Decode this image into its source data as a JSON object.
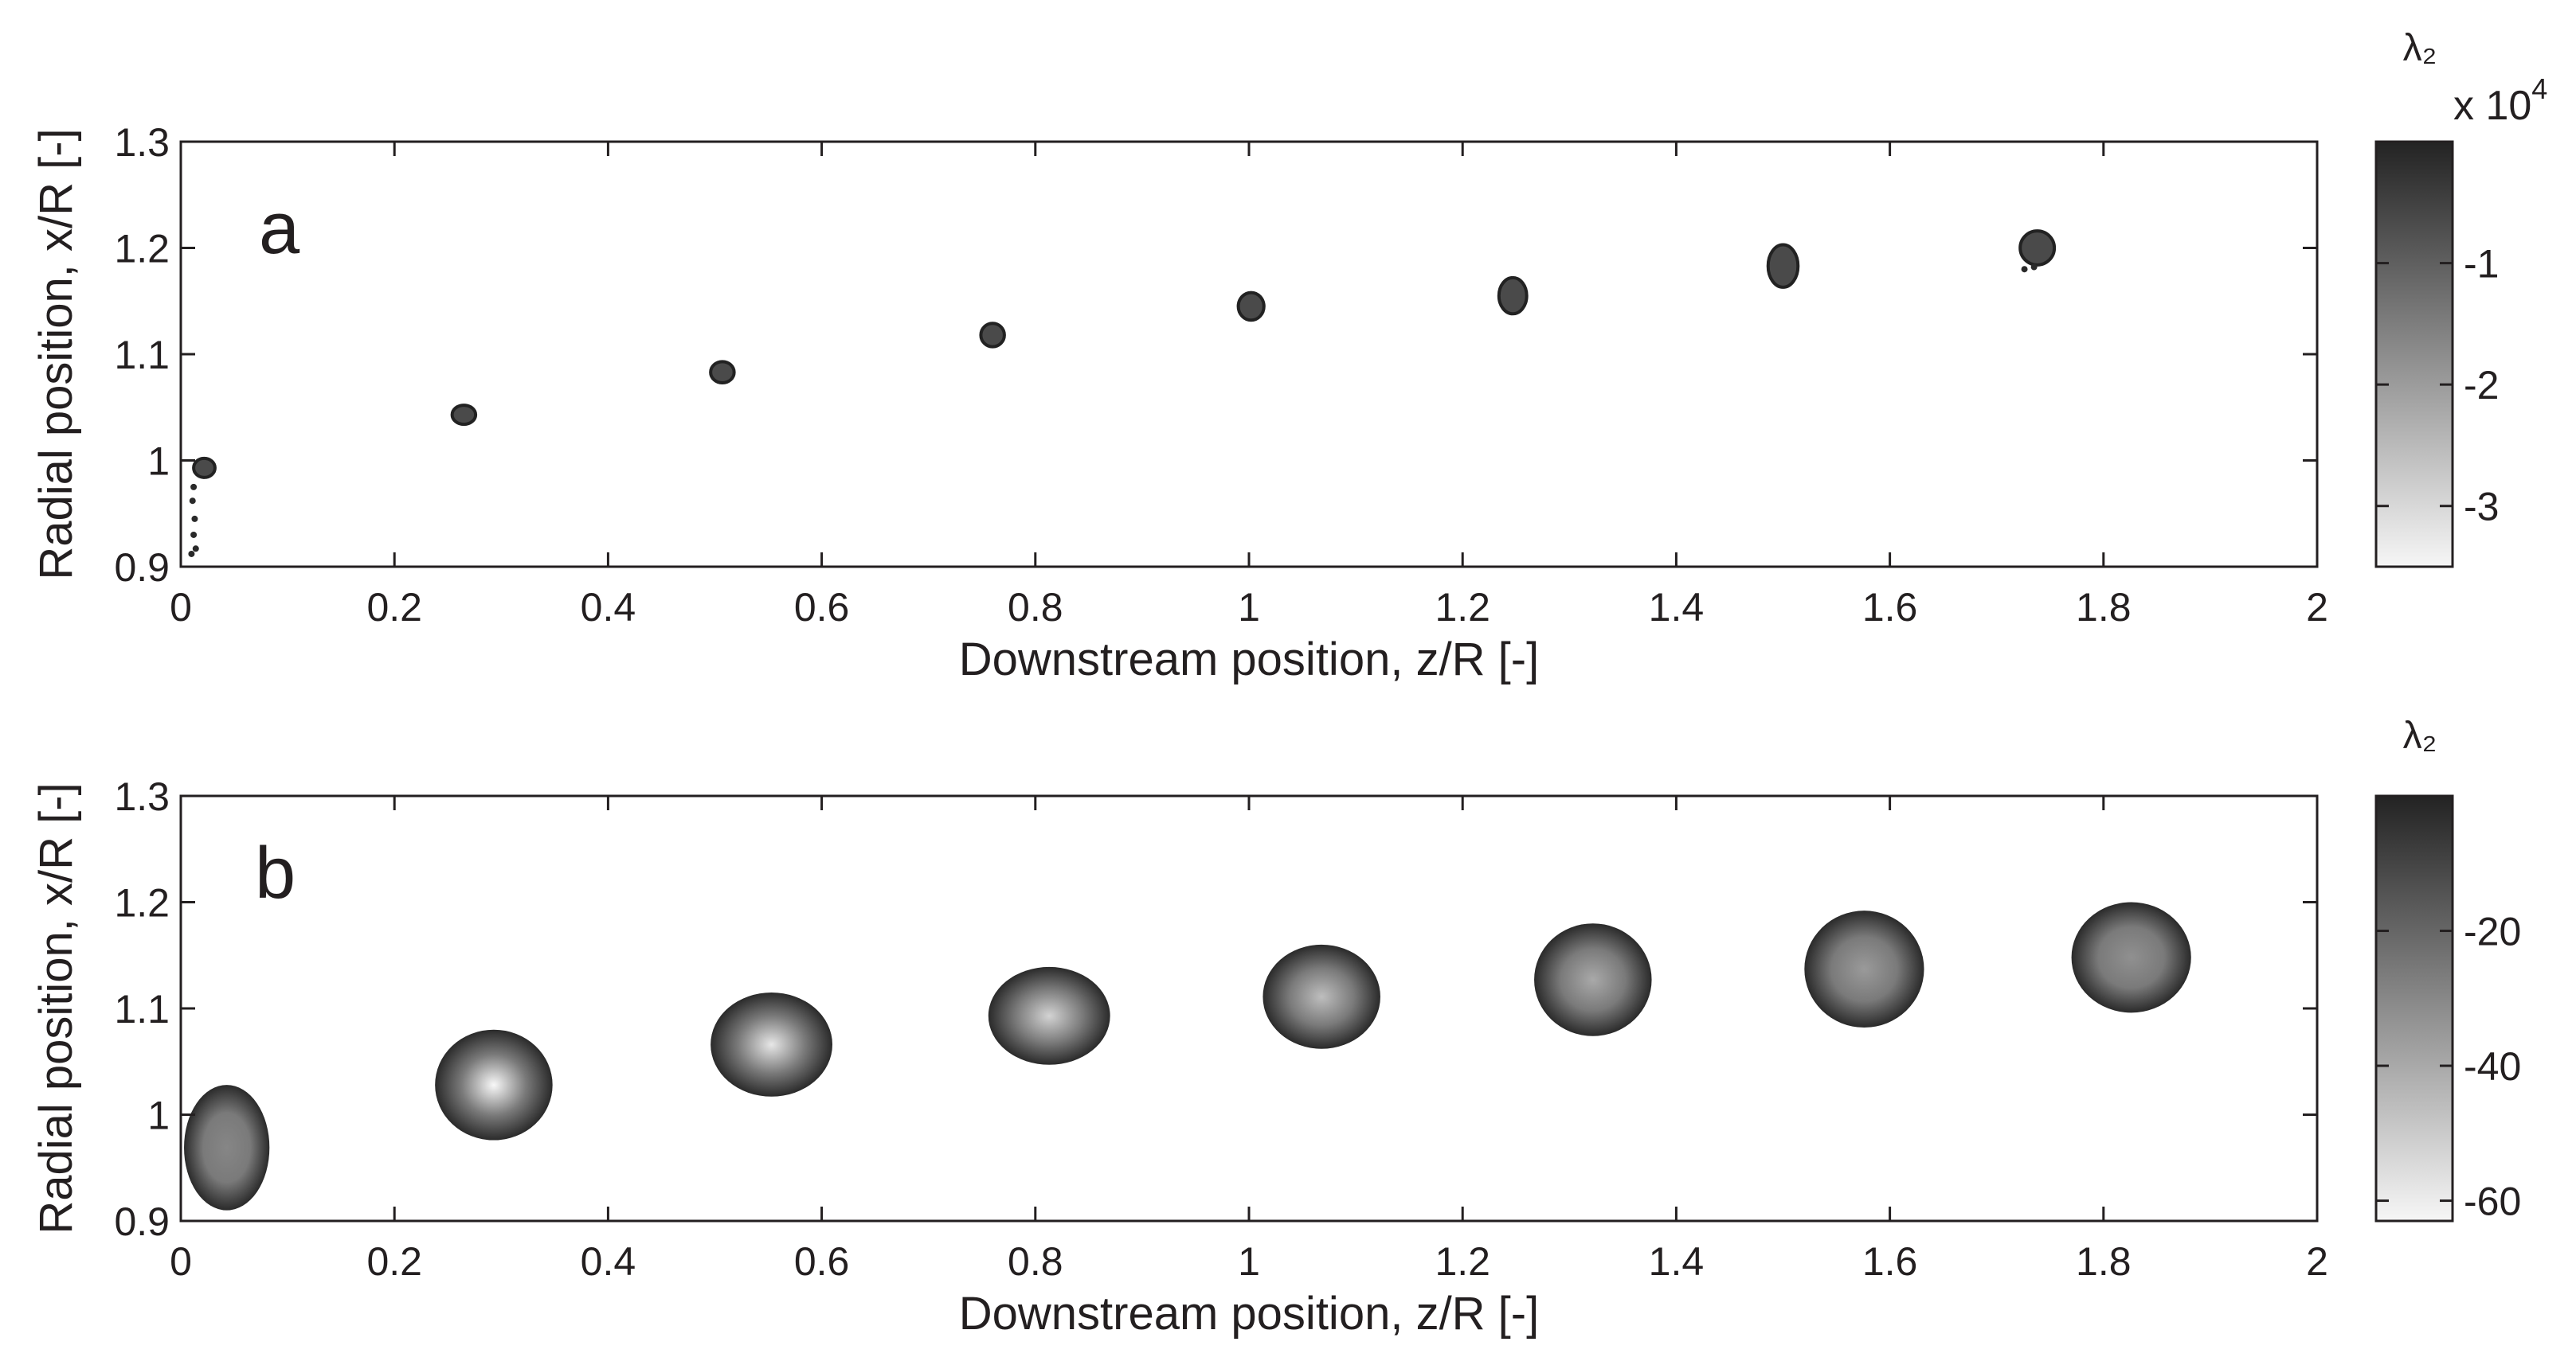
{
  "chart_data": [
    {
      "type": "scatter",
      "panel_label": "a",
      "xlabel": "Downstream position, z/R [-]",
      "ylabel": "Radial position, x/R [-]",
      "xlim": [
        0,
        2
      ],
      "ylim": [
        0.9,
        1.3
      ],
      "xticks": [
        "0",
        "0.2",
        "0.4",
        "0.6",
        "0.8",
        "1",
        "1.2",
        "1.4",
        "1.6",
        "1.8",
        "2"
      ],
      "yticks": [
        "0.9",
        "1",
        "1.1",
        "1.2",
        "1.3"
      ],
      "grid": false,
      "series": [
        {
          "points": [
            {
              "x": 0.022,
              "y": 0.993,
              "rx": 0.01,
              "ry": 0.009
            },
            {
              "x": 0.265,
              "y": 1.043,
              "rx": 0.011,
              "ry": 0.009
            },
            {
              "x": 0.507,
              "y": 1.083,
              "rx": 0.011,
              "ry": 0.01
            },
            {
              "x": 0.76,
              "y": 1.118,
              "rx": 0.011,
              "ry": 0.011
            },
            {
              "x": 1.002,
              "y": 1.145,
              "rx": 0.012,
              "ry": 0.013
            },
            {
              "x": 1.247,
              "y": 1.155,
              "rx": 0.013,
              "ry": 0.017
            },
            {
              "x": 1.5,
              "y": 1.183,
              "rx": 0.014,
              "ry": 0.02
            },
            {
              "x": 1.738,
              "y": 1.2,
              "rx": 0.016,
              "ry": 0.016
            }
          ],
          "debris": [
            {
              "x": 0.012,
              "y": 0.975
            },
            {
              "x": 0.011,
              "y": 0.962
            },
            {
              "x": 0.013,
              "y": 0.945
            },
            {
              "x": 0.012,
              "y": 0.93
            },
            {
              "x": 0.014,
              "y": 0.917
            },
            {
              "x": 0.01,
              "y": 0.912
            },
            {
              "x": 1.735,
              "y": 1.182
            },
            {
              "x": 1.726,
              "y": 1.18
            }
          ]
        }
      ],
      "colorbar": {
        "label": "λ₂",
        "multiplier": "x 10",
        "multiplier_exponent": "4",
        "range": [
          -3.5,
          0
        ],
        "ticks": [
          {
            "value": -1,
            "label": "-1"
          },
          {
            "value": -2,
            "label": "-2"
          },
          {
            "value": -3,
            "label": "-3"
          }
        ],
        "colors": [
          "#f6f6f6",
          "#232323"
        ]
      }
    },
    {
      "type": "scatter",
      "panel_label": "b",
      "xlabel": "Downstream position, z/R [-]",
      "ylabel": "Radial position, x/R [-]",
      "xlim": [
        0,
        2
      ],
      "ylim": [
        0.9,
        1.3
      ],
      "xticks": [
        "0",
        "0.2",
        "0.4",
        "0.6",
        "0.8",
        "1",
        "1.2",
        "1.4",
        "1.6",
        "1.8",
        "2"
      ],
      "yticks": [
        "0.9",
        "1",
        "1.1",
        "1.2",
        "1.3"
      ],
      "grid": false,
      "series": [
        {
          "points": [
            {
              "x": 0.043,
              "y": 0.969,
              "rx": 0.04,
              "ry": 0.059,
              "core": 0.45
            },
            {
              "x": 0.293,
              "y": 1.028,
              "rx": 0.055,
              "ry": 0.052,
              "core": 1.0
            },
            {
              "x": 0.553,
              "y": 1.066,
              "rx": 0.057,
              "ry": 0.049,
              "core": 0.92
            },
            {
              "x": 0.813,
              "y": 1.093,
              "rx": 0.057,
              "ry": 0.046,
              "core": 0.82
            },
            {
              "x": 1.068,
              "y": 1.111,
              "rx": 0.055,
              "ry": 0.049,
              "core": 0.72
            },
            {
              "x": 1.322,
              "y": 1.127,
              "rx": 0.055,
              "ry": 0.053,
              "core": 0.62
            },
            {
              "x": 1.576,
              "y": 1.137,
              "rx": 0.056,
              "ry": 0.055,
              "core": 0.55
            },
            {
              "x": 1.826,
              "y": 1.148,
              "rx": 0.056,
              "ry": 0.052,
              "core": 0.5
            }
          ]
        }
      ],
      "colorbar": {
        "label": "λ₂",
        "range": [
          -63,
          0
        ],
        "ticks": [
          {
            "value": -20,
            "label": "-20"
          },
          {
            "value": -40,
            "label": "-40"
          },
          {
            "value": -60,
            "label": "-60"
          }
        ],
        "colors": [
          "#f6f6f6",
          "#232323"
        ]
      }
    }
  ]
}
